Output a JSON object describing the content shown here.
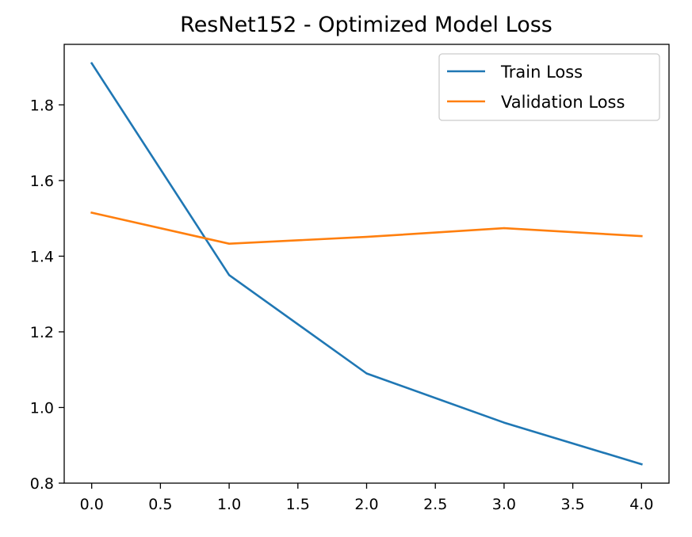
{
  "chart_data": {
    "type": "line",
    "title": "ResNet152 - Optimized Model Loss",
    "xlabel": "",
    "ylabel": "",
    "x": [
      0,
      1,
      2,
      3,
      4
    ],
    "series": [
      {
        "name": "Train Loss",
        "values": [
          1.91,
          1.35,
          1.09,
          0.96,
          0.85
        ],
        "color": "#1f77b4"
      },
      {
        "name": "Validation Loss",
        "values": [
          1.515,
          1.433,
          1.451,
          1.474,
          1.453
        ],
        "color": "#ff7f0e"
      }
    ],
    "xlim": [
      -0.2,
      4.2
    ],
    "ylim": [
      0.8,
      1.96
    ],
    "xticks": [
      0.0,
      0.5,
      1.0,
      1.5,
      2.0,
      2.5,
      3.0,
      3.5,
      4.0
    ],
    "xtick_labels": [
      "0.0",
      "0.5",
      "1.0",
      "1.5",
      "2.0",
      "2.5",
      "3.0",
      "3.5",
      "4.0"
    ],
    "yticks": [
      0.8,
      1.0,
      1.2,
      1.4,
      1.6,
      1.8
    ],
    "ytick_labels": [
      "0.8",
      "1.0",
      "1.2",
      "1.4",
      "1.6",
      "1.8"
    ],
    "grid": false,
    "legend_position": "top-right"
  }
}
